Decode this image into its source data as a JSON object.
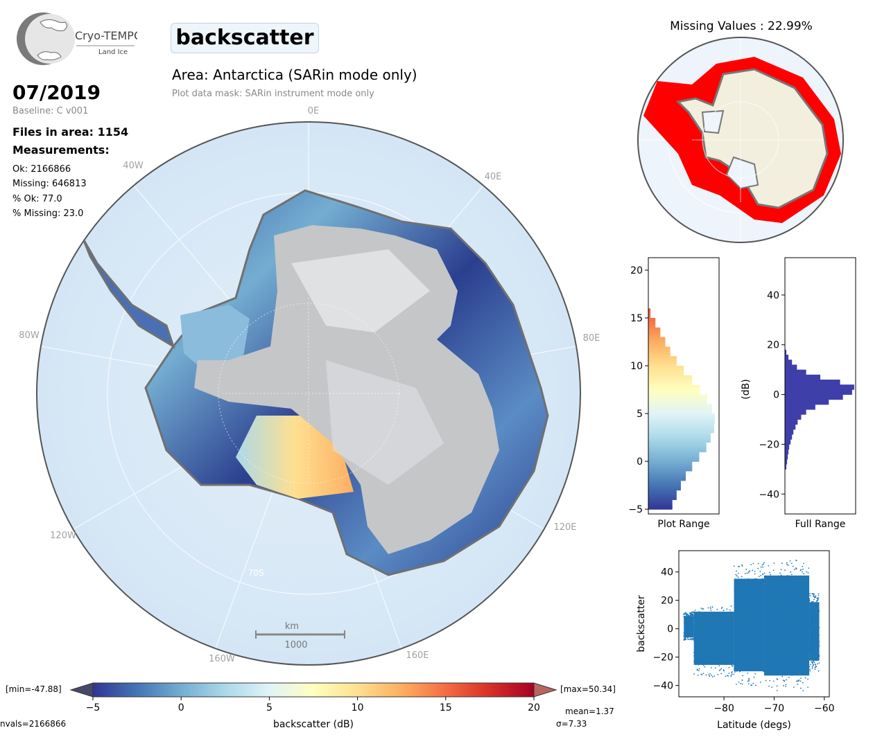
{
  "logo": {
    "name": "Cryo-TEMPO",
    "subtitle": "Land Ice"
  },
  "variable": "backscatter",
  "area_title": "Area: Antarctica (SARin mode only)",
  "mask_note": "Plot data mask: SARin instrument mode only",
  "date": "07/2019",
  "baseline": "Baseline: C v001",
  "files": "Files in area: 1154",
  "measurements_title": "Measurements:",
  "stats": {
    "ok": "Ok: 2166866",
    "missing": "Missing: 646813",
    "pct_ok": "% Ok: 77.0",
    "pct_missing": "% Missing: 23.0"
  },
  "map": {
    "lon_labels": [
      "0E",
      "40E",
      "80E",
      "120E",
      "160E",
      "160W",
      "120W",
      "80W",
      "40W"
    ],
    "lat_label": "70S",
    "scale_unit": "km",
    "scale_value": "1000"
  },
  "missing_map_title": "Missing Values : 22.99%",
  "colorbar": {
    "min_label": "[min=-47.88]",
    "max_label": "[max=50.34]",
    "ticks": [
      "−5",
      "0",
      "5",
      "10",
      "15",
      "20"
    ],
    "label": "backscatter (dB)",
    "nvals": "nvals=2166866",
    "mean": "mean=1.37",
    "sigma": "σ=7.33",
    "colors": [
      "#313695",
      "#4575b4",
      "#74add1",
      "#abd9e9",
      "#e0f3f8",
      "#ffffbf",
      "#fee090",
      "#fdae61",
      "#f46d43",
      "#d73027",
      "#a50026"
    ]
  },
  "chart_data": [
    {
      "type": "bar",
      "orientation": "horizontal",
      "xlabel": "Plot Range",
      "ylim": [
        -5.5,
        21.3
      ],
      "yticks": [
        "−5",
        "0",
        "5",
        "10",
        "15",
        "20"
      ],
      "bins": [
        -5,
        -4,
        -3,
        -2,
        -1,
        0,
        1,
        2,
        3,
        4,
        5,
        6,
        7,
        8,
        9,
        10,
        11,
        12,
        13,
        14,
        15
      ],
      "values": [
        0.34,
        0.4,
        0.46,
        0.53,
        0.62,
        0.72,
        0.82,
        0.88,
        0.93,
        0.94,
        0.9,
        0.83,
        0.73,
        0.62,
        0.5,
        0.4,
        0.31,
        0.24,
        0.17,
        0.1,
        0.03
      ]
    },
    {
      "type": "bar",
      "orientation": "horizontal",
      "xlabel": "Full Range",
      "ylabel": "(dB)",
      "ylim": [
        -48,
        55
      ],
      "yticks": [
        "−40",
        "−20",
        "0",
        "20",
        "40"
      ],
      "color": "#3f3faa",
      "bins": [
        -30,
        -28,
        -26,
        -24,
        -22,
        -20,
        -18,
        -16,
        -14,
        -12,
        -10,
        -8,
        -6,
        -4,
        -2,
        0,
        2,
        4,
        6,
        8,
        10,
        12,
        14,
        16
      ],
      "values": [
        0.02,
        0.03,
        0.04,
        0.05,
        0.06,
        0.08,
        0.1,
        0.12,
        0.15,
        0.18,
        0.23,
        0.3,
        0.43,
        0.62,
        0.82,
        0.95,
        0.98,
        0.78,
        0.5,
        0.3,
        0.17,
        0.1,
        0.05,
        0.02
      ]
    },
    {
      "type": "scatter",
      "xlabel": "Latitude (degs)",
      "ylabel": "backscatter",
      "xlim": [
        -89,
        -59
      ],
      "ylim": [
        -48,
        55
      ],
      "xticks": [
        "−80",
        "−70",
        "−60"
      ],
      "yticks": [
        "−40",
        "−20",
        "0",
        "20",
        "40"
      ],
      "color": "#1f77b4",
      "segments": [
        {
          "lat_range": [
            -88,
            -86
          ],
          "ymin": -8,
          "ymax": 12
        },
        {
          "lat_range": [
            -86,
            -78
          ],
          "ymin": -34,
          "ymax": 16
        },
        {
          "lat_range": [
            -78,
            -72
          ],
          "ymin": -40,
          "ymax": 47
        },
        {
          "lat_range": [
            -72,
            -63
          ],
          "ymin": -44,
          "ymax": 50
        },
        {
          "lat_range": [
            -63,
            -61
          ],
          "ymin": -30,
          "ymax": 25
        }
      ]
    }
  ]
}
